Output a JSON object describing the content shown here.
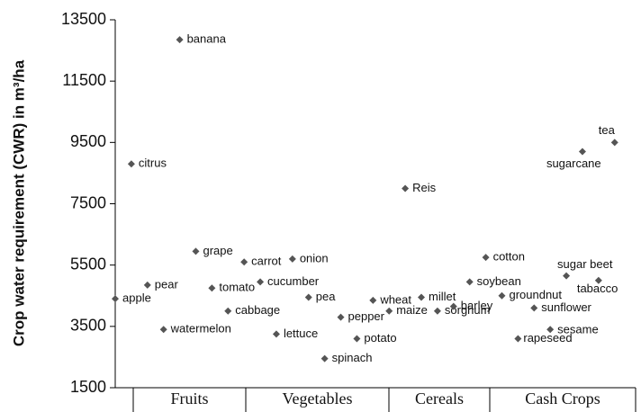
{
  "chart_data": {
    "type": "scatter",
    "y_label": "Crop water requirement (CWR) in m³/ha",
    "ylim": [
      1500,
      13500
    ],
    "yticks": [
      1500,
      3500,
      5500,
      7500,
      9500,
      11500,
      13500
    ],
    "xlim": [
      0,
      32.3
    ],
    "groups": [
      "Fruits",
      "Vegetables",
      "Cereals",
      "Cash Crops"
    ],
    "color": "#555555",
    "labels": [
      "apple",
      "citrus",
      "pear",
      "watermelon",
      "banana",
      "grape",
      "tomato",
      "cabbage",
      "carrot",
      "cucumber",
      "lettuce",
      "onion",
      "pea",
      "spinach",
      "pepper",
      "potato",
      "wheat",
      "maize",
      "Reis",
      "millet",
      "sorghum",
      "barley",
      "soybean",
      "cotton",
      "groundnut",
      "rapeseed",
      "sunflower",
      "sesame",
      "sugar beet",
      "sugarcane",
      "tabacco",
      "tea"
    ],
    "x": [
      0,
      1,
      2,
      3,
      4,
      5,
      6,
      7,
      8,
      9,
      10,
      11,
      12,
      13,
      14,
      15,
      16,
      17,
      18,
      19,
      20,
      21,
      22,
      23,
      24,
      25,
      26,
      27,
      28,
      29,
      30,
      31
    ],
    "values": [
      4400,
      8800,
      4850,
      3400,
      12850,
      5950,
      4750,
      4000,
      5600,
      4950,
      3250,
      5700,
      4450,
      2450,
      3800,
      3100,
      4350,
      4000,
      8000,
      4450,
      4000,
      4150,
      4950,
      5750,
      4500,
      3100,
      4100,
      3400,
      5150,
      9200,
      5000,
      9500
    ]
  }
}
